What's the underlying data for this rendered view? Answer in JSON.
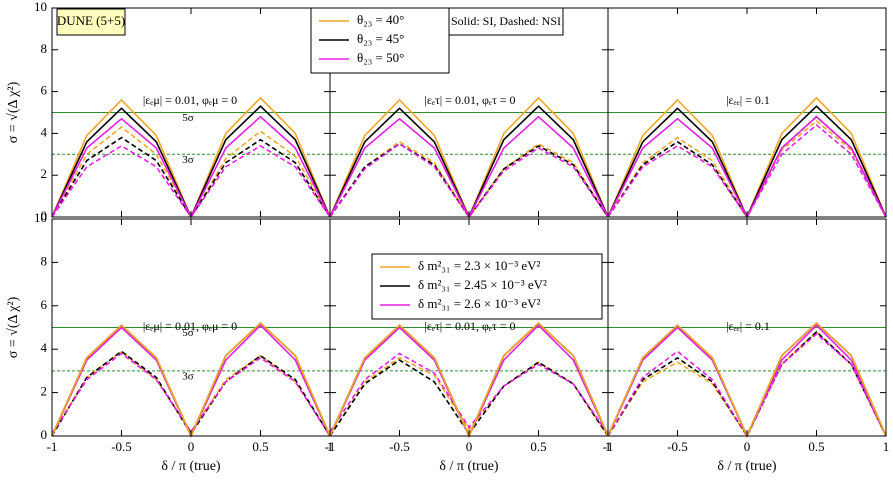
{
  "chart_data": [
    {
      "type": "line",
      "tag": "DUNE (5+5)",
      "annotation": "|εₑμ| = 0.01, φₑμ = 0",
      "y_label": "σ = √(Δ χ²)",
      "x": [
        -1,
        -0.75,
        -0.5,
        -0.25,
        0,
        0.25,
        0.5,
        0.75,
        1
      ],
      "xlim": [
        -1,
        1
      ],
      "ylim": [
        0,
        10
      ],
      "xticks": [
        -1,
        -0.5,
        0,
        0.5,
        1
      ],
      "yticks": [
        0,
        2,
        4,
        6,
        8,
        10
      ],
      "reference_lines": [
        {
          "value": 5,
          "label": "5σ",
          "style": "solid",
          "color": "#2e8b2e"
        },
        {
          "value": 3,
          "label": "3σ",
          "style": "dashed",
          "color": "#2e8b2e"
        }
      ],
      "legend": {
        "note": "Solid: SI,  Dashed: NSI",
        "entries": [
          {
            "label": "θ₂₃ = 40°",
            "color": "#f5a623"
          },
          {
            "label": "θ₂₃ = 45°",
            "color": "#000000"
          },
          {
            "label": "θ₂₃ = 50°",
            "color": "#e81ee8"
          }
        ]
      },
      "series": [
        {
          "color": "#f5a623",
          "dashed": true,
          "values": [
            0,
            3.0,
            4.3,
            3.0,
            0,
            2.8,
            4.1,
            2.9,
            0
          ]
        },
        {
          "color": "#000000",
          "dashed": true,
          "values": [
            0,
            2.7,
            3.8,
            2.7,
            0,
            2.6,
            3.7,
            2.6,
            0
          ]
        },
        {
          "color": "#e81ee8",
          "dashed": true,
          "values": [
            0,
            2.4,
            3.4,
            2.4,
            0,
            2.4,
            3.4,
            2.4,
            0
          ]
        },
        {
          "color": "#f5a623",
          "dashed": false,
          "values": [
            0,
            3.9,
            5.6,
            3.9,
            0,
            4.0,
            5.7,
            4.0,
            0
          ]
        },
        {
          "color": "#000000",
          "dashed": false,
          "values": [
            0,
            3.6,
            5.2,
            3.6,
            0,
            3.7,
            5.3,
            3.7,
            0
          ]
        },
        {
          "color": "#e81ee8",
          "dashed": false,
          "values": [
            0,
            3.3,
            4.7,
            3.3,
            0,
            3.3,
            4.8,
            3.3,
            0
          ]
        }
      ]
    },
    {
      "type": "line",
      "annotation": "|εₑτ| = 0.01, φₑτ = 0",
      "x": [
        -1,
        -0.75,
        -0.5,
        -0.25,
        0,
        0.25,
        0.5,
        0.75,
        1
      ],
      "xlim": [
        -1,
        1
      ],
      "ylim": [
        0,
        10
      ],
      "xticks": [
        -1,
        -0.5,
        0,
        0.5,
        1
      ],
      "yticks": [
        0,
        2,
        4,
        6,
        8,
        10
      ],
      "reference_lines": [
        {
          "value": 5,
          "style": "solid",
          "color": "#2e8b2e"
        },
        {
          "value": 3,
          "style": "dashed",
          "color": "#2e8b2e"
        }
      ],
      "series": [
        {
          "color": "#f5a623",
          "dashed": true,
          "values": [
            0,
            2.4,
            3.6,
            2.6,
            0,
            2.3,
            3.5,
            2.6,
            0
          ]
        },
        {
          "color": "#000000",
          "dashed": true,
          "values": [
            0,
            2.4,
            3.5,
            2.5,
            0,
            2.3,
            3.4,
            2.5,
            0
          ]
        },
        {
          "color": "#e81ee8",
          "dashed": true,
          "values": [
            0,
            2.3,
            3.5,
            2.4,
            0,
            2.2,
            3.3,
            2.4,
            0
          ]
        },
        {
          "color": "#f5a623",
          "dashed": false,
          "values": [
            0,
            3.9,
            5.6,
            3.9,
            0,
            4.0,
            5.7,
            4.0,
            0
          ]
        },
        {
          "color": "#000000",
          "dashed": false,
          "values": [
            0,
            3.6,
            5.2,
            3.6,
            0,
            3.7,
            5.3,
            3.7,
            0
          ]
        },
        {
          "color": "#e81ee8",
          "dashed": false,
          "values": [
            0,
            3.3,
            4.7,
            3.3,
            0,
            3.3,
            4.8,
            3.3,
            0
          ]
        }
      ]
    },
    {
      "type": "line",
      "annotation": "|εₑₑ| = 0.1",
      "x": [
        -1,
        -0.75,
        -0.5,
        -0.25,
        0,
        0.25,
        0.5,
        0.75,
        1
      ],
      "xlim": [
        -1,
        1
      ],
      "ylim": [
        0,
        10
      ],
      "xticks": [
        -1,
        -0.5,
        0,
        0.5,
        1
      ],
      "yticks": [
        0,
        2,
        4,
        6,
        8,
        10
      ],
      "reference_lines": [
        {
          "value": 5,
          "style": "solid",
          "color": "#2e8b2e"
        },
        {
          "value": 3,
          "style": "dashed",
          "color": "#2e8b2e"
        }
      ],
      "series": [
        {
          "color": "#f5a623",
          "dashed": true,
          "values": [
            0,
            2.6,
            3.8,
            2.7,
            0,
            3.2,
            4.6,
            3.2,
            0
          ]
        },
        {
          "color": "#000000",
          "dashed": true,
          "values": [
            0,
            2.5,
            3.6,
            2.5,
            0,
            3.3,
            4.8,
            3.3,
            0
          ]
        },
        {
          "color": "#e81ee8",
          "dashed": true,
          "values": [
            0,
            2.4,
            3.4,
            2.4,
            0,
            3.0,
            4.4,
            3.0,
            0
          ]
        },
        {
          "color": "#f5a623",
          "dashed": false,
          "values": [
            0,
            3.9,
            5.6,
            3.9,
            0,
            4.0,
            5.7,
            4.0,
            0
          ]
        },
        {
          "color": "#000000",
          "dashed": false,
          "values": [
            0,
            3.6,
            5.2,
            3.6,
            0,
            3.7,
            5.3,
            3.7,
            0
          ]
        },
        {
          "color": "#e81ee8",
          "dashed": false,
          "values": [
            0,
            3.3,
            4.7,
            3.3,
            0,
            3.3,
            4.8,
            3.3,
            0
          ]
        }
      ]
    },
    {
      "type": "line",
      "annotation": "|εₑμ| = 0.01, φₑμ = 0",
      "y_label": "σ = √(Δ χ²)",
      "x_label": "δ / π (true)",
      "x": [
        -1,
        -0.75,
        -0.5,
        -0.25,
        0,
        0.25,
        0.5,
        0.75,
        1
      ],
      "xlim": [
        -1,
        1
      ],
      "ylim": [
        0,
        10
      ],
      "xticks": [
        -1,
        -0.5,
        0,
        0.5,
        1
      ],
      "yticks": [
        0,
        2,
        4,
        6,
        8,
        10
      ],
      "reference_lines": [
        {
          "value": 5,
          "label": "5σ",
          "style": "solid",
          "color": "#2e8b2e"
        },
        {
          "value": 3,
          "label": "3σ",
          "style": "dashed",
          "color": "#2e8b2e"
        }
      ],
      "series": [
        {
          "color": "#f5a623",
          "dashed": true,
          "values": [
            0.1,
            2.7,
            3.9,
            2.6,
            0.2,
            2.6,
            3.7,
            2.5,
            0
          ]
        },
        {
          "color": "#000000",
          "dashed": true,
          "values": [
            0,
            2.7,
            3.9,
            2.7,
            0.1,
            2.5,
            3.7,
            2.6,
            0
          ]
        },
        {
          "color": "#e81ee8",
          "dashed": true,
          "values": [
            0.1,
            2.6,
            3.8,
            2.6,
            0.2,
            2.5,
            3.6,
            2.5,
            0
          ]
        },
        {
          "color": "#e81ee8",
          "dashed": false,
          "values": [
            0,
            3.5,
            5.0,
            3.5,
            0,
            3.5,
            5.1,
            3.5,
            0
          ]
        },
        {
          "color": "#000000",
          "dashed": false,
          "values": [
            0,
            3.6,
            5.1,
            3.6,
            0,
            3.7,
            5.2,
            3.7,
            0
          ]
        },
        {
          "color": "#f5a623",
          "dashed": false,
          "values": [
            0,
            3.6,
            5.1,
            3.6,
            0,
            3.7,
            5.2,
            3.7,
            0
          ]
        }
      ]
    },
    {
      "type": "line",
      "annotation": "|εₑτ| = 0.01, φₑτ = 0",
      "x_label": "δ / π (true)",
      "x": [
        -1,
        -0.75,
        -0.5,
        -0.25,
        0,
        0.25,
        0.5,
        0.75,
        1
      ],
      "xlim": [
        -1,
        1
      ],
      "ylim": [
        0,
        10
      ],
      "xticks": [
        -1,
        -0.5,
        0,
        0.5,
        1
      ],
      "yticks": [
        0,
        2,
        4,
        6,
        8,
        10
      ],
      "reference_lines": [
        {
          "value": 5,
          "style": "solid",
          "color": "#2e8b2e"
        },
        {
          "value": 3,
          "style": "dashed",
          "color": "#2e8b2e"
        }
      ],
      "legend": {
        "entries": [
          {
            "label": "δ m²₃₁ = 2.3 × 10⁻³ eV²",
            "color": "#f5a623"
          },
          {
            "label": "δ m²₃₁ = 2.45 × 10⁻³ eV²",
            "color": "#000000"
          },
          {
            "label": "δ m²₃₁ = 2.6 × 10⁻³ eV²",
            "color": "#e81ee8"
          }
        ]
      },
      "series": [
        {
          "color": "#f5a623",
          "dashed": true,
          "values": [
            0,
            2.5,
            3.6,
            2.8,
            0.3,
            2.3,
            3.4,
            2.4,
            0
          ]
        },
        {
          "color": "#000000",
          "dashed": true,
          "values": [
            0,
            2.4,
            3.5,
            2.5,
            0.1,
            2.3,
            3.4,
            2.4,
            0
          ]
        },
        {
          "color": "#e81ee8",
          "dashed": true,
          "values": [
            0.2,
            2.6,
            3.8,
            2.9,
            0.4,
            2.3,
            3.3,
            2.4,
            0.1
          ]
        },
        {
          "color": "#e81ee8",
          "dashed": false,
          "values": [
            0,
            3.5,
            5.0,
            3.5,
            0,
            3.5,
            5.1,
            3.5,
            0
          ]
        },
        {
          "color": "#000000",
          "dashed": false,
          "values": [
            0,
            3.6,
            5.1,
            3.6,
            0,
            3.7,
            5.2,
            3.7,
            0
          ]
        },
        {
          "color": "#f5a623",
          "dashed": false,
          "values": [
            0,
            3.6,
            5.1,
            3.6,
            0,
            3.7,
            5.2,
            3.7,
            0
          ]
        }
      ]
    },
    {
      "type": "line",
      "annotation": "|εₑₑ| = 0.1",
      "x_label": "δ / π (true)",
      "x": [
        -1,
        -0.75,
        -0.5,
        -0.25,
        0,
        0.25,
        0.5,
        0.75,
        1
      ],
      "xlim": [
        -1,
        1
      ],
      "ylim": [
        0,
        10
      ],
      "xticks": [
        -1,
        -0.5,
        0,
        0.5,
        1
      ],
      "yticks": [
        0,
        2,
        4,
        6,
        8,
        10
      ],
      "reference_lines": [
        {
          "value": 5,
          "style": "solid",
          "color": "#2e8b2e"
        },
        {
          "value": 3,
          "style": "dashed",
          "color": "#2e8b2e"
        }
      ],
      "series": [
        {
          "color": "#f5a623",
          "dashed": true,
          "values": [
            0,
            2.5,
            3.4,
            2.4,
            0,
            3.3,
            4.8,
            3.3,
            0
          ]
        },
        {
          "color": "#000000",
          "dashed": true,
          "values": [
            0,
            2.6,
            3.6,
            2.5,
            0,
            3.3,
            4.8,
            3.3,
            0
          ]
        },
        {
          "color": "#e81ee8",
          "dashed": true,
          "values": [
            0,
            2.7,
            3.9,
            2.6,
            0,
            3.3,
            4.7,
            3.3,
            0
          ]
        },
        {
          "color": "#e81ee8",
          "dashed": false,
          "values": [
            0,
            3.5,
            5.0,
            3.5,
            0,
            3.5,
            5.1,
            3.5,
            0
          ]
        },
        {
          "color": "#000000",
          "dashed": false,
          "values": [
            0,
            3.6,
            5.1,
            3.6,
            0,
            3.7,
            5.2,
            3.7,
            0
          ]
        },
        {
          "color": "#f5a623",
          "dashed": false,
          "values": [
            0,
            3.6,
            5.1,
            3.6,
            0,
            3.7,
            5.2,
            3.7,
            0
          ]
        }
      ]
    }
  ]
}
